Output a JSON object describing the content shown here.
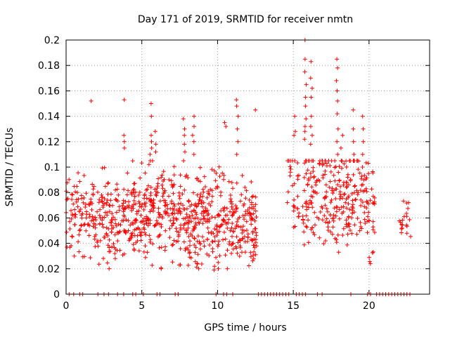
{
  "chart_data": {
    "type": "scatter",
    "title": "Day 171 of 2019, SRMTID for receiver nmtn",
    "xlabel": "GPS time / hours",
    "ylabel": "SRMTID / TECUs",
    "xlim": [
      0,
      24
    ],
    "ylim": [
      0,
      0.2
    ],
    "x_ticks": [
      0,
      5,
      10,
      15,
      20
    ],
    "x_tick_labels": [
      "0",
      "5",
      "10",
      "15",
      "20"
    ],
    "y_ticks": [
      0,
      0.02,
      0.04,
      0.06,
      0.08,
      0.1,
      0.12,
      0.14,
      0.16,
      0.18,
      0.2
    ],
    "y_tick_labels": [
      "0",
      "0.02",
      "0.04",
      "0.06",
      "0.08",
      "0.1",
      "0.12",
      "0.14",
      "0.16",
      "0.18",
      "0.2"
    ],
    "grid": true,
    "marker": "+",
    "marker_color": "#ff0000",
    "zero_series": {
      "name": "zero-valued samples",
      "x": [
        0.2,
        0.5,
        0.9,
        1.1,
        2.1,
        2.5,
        2.8,
        3.4,
        3.8,
        4.4,
        4.6,
        5.1,
        6.0,
        6.2,
        7.2,
        7.4,
        9.9,
        10.4,
        10.6,
        11.0,
        12.7,
        12.9,
        13.1,
        13.3,
        13.5,
        13.7,
        13.9,
        14.1,
        14.3,
        14.5,
        14.7,
        15.2,
        15.4,
        15.6,
        15.8,
        16.6,
        16.9,
        18.8,
        19.9,
        20.1,
        20.5,
        20.7,
        20.9,
        21.1,
        21.3,
        21.5,
        21.7,
        21.9,
        22.1,
        22.3,
        22.5,
        22.7
      ],
      "y": 0
    },
    "segments": [
      {
        "x_start": 0.0,
        "x_end": 1.8,
        "n": 90,
        "base": 0.062,
        "spread": 0.016
      },
      {
        "x_start": 1.8,
        "x_end": 3.6,
        "n": 110,
        "base": 0.058,
        "spread": 0.017
      },
      {
        "x_start": 3.6,
        "x_end": 5.2,
        "n": 110,
        "base": 0.064,
        "spread": 0.017
      },
      {
        "x_start": 5.2,
        "x_end": 7.2,
        "n": 140,
        "base": 0.066,
        "spread": 0.018
      },
      {
        "x_start": 7.2,
        "x_end": 9.2,
        "n": 150,
        "base": 0.06,
        "spread": 0.017
      },
      {
        "x_start": 9.2,
        "x_end": 10.8,
        "n": 100,
        "base": 0.058,
        "spread": 0.018
      },
      {
        "x_start": 10.8,
        "x_end": 12.6,
        "n": 130,
        "base": 0.052,
        "spread": 0.016
      },
      {
        "x_start": 14.6,
        "x_end": 15.4,
        "n": 30,
        "base": 0.075,
        "spread": 0.02
      },
      {
        "x_start": 15.6,
        "x_end": 17.0,
        "n": 80,
        "base": 0.08,
        "spread": 0.022
      },
      {
        "x_start": 17.0,
        "x_end": 18.4,
        "n": 90,
        "base": 0.074,
        "spread": 0.02
      },
      {
        "x_start": 18.4,
        "x_end": 20.0,
        "n": 100,
        "base": 0.078,
        "spread": 0.02
      },
      {
        "x_start": 20.0,
        "x_end": 20.4,
        "n": 20,
        "base": 0.06,
        "spread": 0.016
      },
      {
        "x_start": 22.0,
        "x_end": 22.8,
        "n": 20,
        "base": 0.058,
        "spread": 0.008
      }
    ],
    "spikes": [
      {
        "x": 1.7,
        "values": [
          0.152
        ]
      },
      {
        "x": 3.8,
        "values": [
          0.153,
          0.12,
          0.115,
          0.125
        ]
      },
      {
        "x": 5.6,
        "values": [
          0.15,
          0.14,
          0.125,
          0.12,
          0.115,
          0.11,
          0.105
        ]
      },
      {
        "x": 5.9,
        "values": [
          0.128,
          0.118,
          0.112
        ]
      },
      {
        "x": 7.8,
        "values": [
          0.138,
          0.13,
          0.125,
          0.118,
          0.112,
          0.105
        ]
      },
      {
        "x": 8.4,
        "values": [
          0.14,
          0.132,
          0.125,
          0.12,
          0.11
        ]
      },
      {
        "x": 10.5,
        "values": [
          0.135,
          0.132
        ]
      },
      {
        "x": 11.3,
        "values": [
          0.153,
          0.148,
          0.14,
          0.13,
          0.12,
          0.11
        ]
      },
      {
        "x": 12.5,
        "values": [
          0.145
        ]
      },
      {
        "x": 15.1,
        "values": [
          0.14,
          0.128,
          0.125
        ]
      },
      {
        "x": 15.8,
        "values": [
          0.2,
          0.185,
          0.175,
          0.165,
          0.155,
          0.148,
          0.138,
          0.132,
          0.128,
          0.122
        ]
      },
      {
        "x": 16.2,
        "values": [
          0.183,
          0.17,
          0.162,
          0.155,
          0.14,
          0.132,
          0.125,
          0.118
        ]
      },
      {
        "x": 17.9,
        "values": [
          0.185,
          0.178,
          0.168,
          0.16,
          0.152,
          0.142,
          0.13,
          0.12,
          0.11
        ]
      },
      {
        "x": 18.2,
        "values": [
          0.125,
          0.115,
          0.105
        ]
      },
      {
        "x": 19.0,
        "values": [
          0.145,
          0.13,
          0.12,
          0.11
        ]
      },
      {
        "x": 19.6,
        "values": [
          0.14,
          0.13,
          0.12,
          0.11,
          0.1
        ]
      },
      {
        "x": 20.1,
        "values": [
          0.024
        ]
      },
      {
        "x": 3.2,
        "values": [
          0.028,
          0.032
        ]
      },
      {
        "x": 9.8,
        "values": [
          0.019,
          0.022
        ]
      }
    ]
  }
}
